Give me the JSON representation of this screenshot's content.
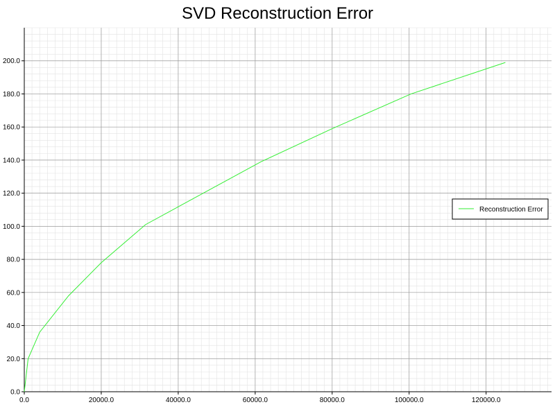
{
  "chart_data": {
    "type": "line",
    "title": "SVD Reconstruction Error",
    "xlabel": "",
    "ylabel": "",
    "xlim": [
      0,
      137000
    ],
    "ylim": [
      0,
      220
    ],
    "x_ticks": [
      "0.0",
      "20000.0",
      "40000.0",
      "60000.0",
      "80000.0",
      "100000.0",
      "120000.0"
    ],
    "y_ticks": [
      "0.0",
      "20.0",
      "40.0",
      "60.0",
      "80.0",
      "100.0",
      "120.0",
      "140.0",
      "160.0",
      "180.0",
      "200.0"
    ],
    "grid": true,
    "legend_position": "right",
    "series": [
      {
        "name": "Reconstruction Error",
        "color": "#33ee33",
        "x": [
          0,
          1000,
          4000,
          11500,
          20000,
          31500,
          61500,
          80000,
          100500,
          125000
        ],
        "y": [
          0,
          20,
          36,
          58,
          78,
          101,
          139,
          159,
          180,
          199
        ]
      }
    ]
  }
}
